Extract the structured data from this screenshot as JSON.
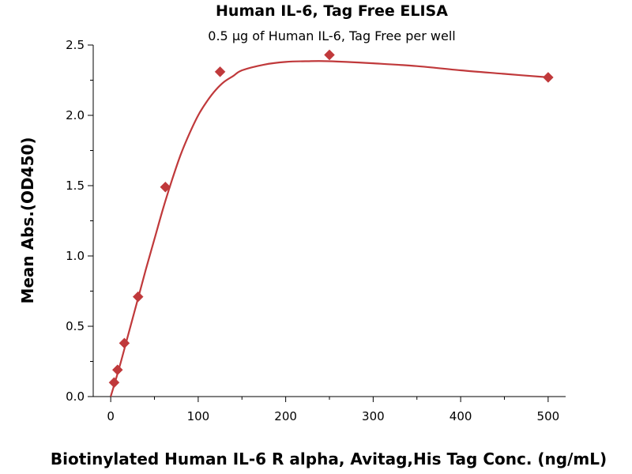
{
  "chart_data": {
    "type": "scatter",
    "title": "Human IL-6, Tag Free ELISA",
    "subtitle": "0.5 µg of Human IL-6, Tag Free per well",
    "xlabel": "Biotinylated Human IL-6 R alpha, Avitag,His Tag Conc. (ng/mL)",
    "ylabel": "Mean Abs.(OD450)",
    "xlim": [
      -20,
      520
    ],
    "ylim": [
      0,
      2.5
    ],
    "xticks": [
      0,
      100,
      200,
      300,
      400,
      500
    ],
    "xtick_labels": [
      "0",
      "100",
      "200",
      "300",
      "400",
      "500"
    ],
    "yticks": [
      0.0,
      0.5,
      1.0,
      1.5,
      2.0,
      2.5
    ],
    "ytick_labels": [
      "0.0",
      "0.5",
      "1.0",
      "1.5",
      "2.0",
      "2.5"
    ],
    "grid": false,
    "series": [
      {
        "points": [
          {
            "x": 3.9,
            "y": 0.1
          },
          {
            "x": 7.8,
            "y": 0.19
          },
          {
            "x": 15.6,
            "y": 0.38
          },
          {
            "x": 31.25,
            "y": 0.71
          },
          {
            "x": 62.5,
            "y": 1.49
          },
          {
            "x": 125,
            "y": 2.31
          },
          {
            "x": 250,
            "y": 2.43
          },
          {
            "x": 500,
            "y": 2.27
          }
        ],
        "fit_curve": {
          "x": [
            0,
            10,
            20,
            30,
            40,
            50,
            60,
            70,
            80,
            90,
            100,
            110,
            120,
            130,
            140,
            150,
            175,
            200,
            225,
            250,
            300,
            350,
            400,
            450,
            500
          ],
          "y": [
            0.0,
            0.21,
            0.44,
            0.67,
            0.9,
            1.12,
            1.34,
            1.54,
            1.72,
            1.87,
            2.0,
            2.1,
            2.18,
            2.24,
            2.28,
            2.32,
            2.36,
            2.38,
            2.385,
            2.385,
            2.37,
            2.35,
            2.32,
            2.295,
            2.27
          ]
        },
        "color": "#c0393b"
      }
    ]
  }
}
